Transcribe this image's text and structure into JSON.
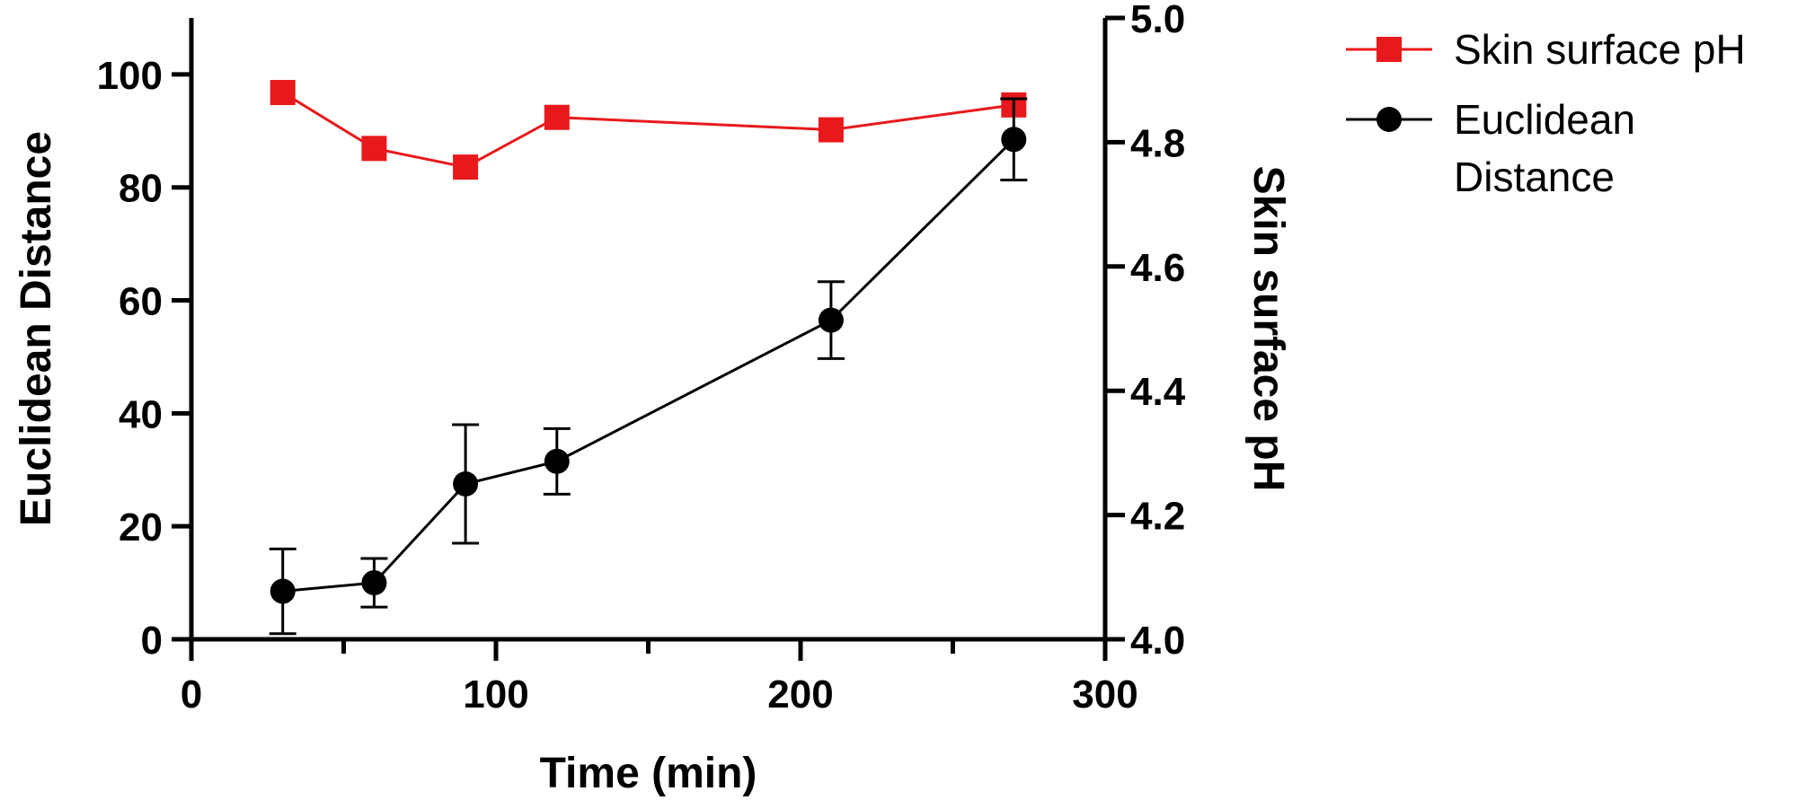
{
  "chart_data": {
    "type": "line",
    "title": "",
    "xlabel": "Time (min)",
    "ylabel_left": "Euclidean Distance",
    "ylabel_right": "Skin surface pH",
    "xlim": [
      0,
      300
    ],
    "ylim_left": [
      0,
      110
    ],
    "ylim_right": [
      4.0,
      5.0
    ],
    "x_ticks": [
      "0",
      "100",
      "200",
      "300"
    ],
    "y_left_ticks": [
      "0",
      "20",
      "40",
      "60",
      "80",
      "100"
    ],
    "y_right_ticks": [
      "4.0",
      "4.2",
      "4.4",
      "4.6",
      "4.8",
      "5.0"
    ],
    "grid": false,
    "legend_position": "top-right",
    "series": [
      {
        "name": "Skin surface pH",
        "axis": "right",
        "marker": "square",
        "color": "#e8191c",
        "x": [
          30,
          60,
          90,
          120,
          210,
          270
        ],
        "y": [
          4.88,
          4.79,
          4.76,
          4.84,
          4.82,
          4.86
        ]
      },
      {
        "name": "Euclidean Distance",
        "name_lines": [
          "Euclidean",
          "Distance"
        ],
        "axis": "left",
        "marker": "circle",
        "color": "#000000",
        "x": [
          30,
          60,
          90,
          120,
          210,
          270
        ],
        "y": [
          8.5,
          10,
          27.5,
          31.5,
          56.5,
          88.5
        ],
        "error": [
          7.5,
          4.3,
          10.5,
          5.8,
          6.8,
          7.2
        ]
      }
    ]
  }
}
